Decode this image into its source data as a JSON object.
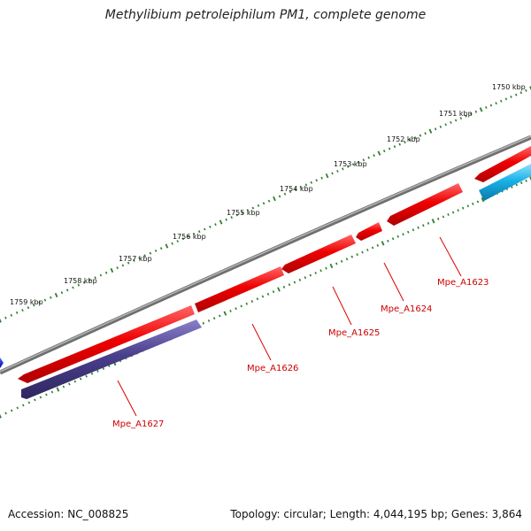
{
  "title": "Methylibium petroleiphilum PM1, complete genome",
  "footer": {
    "accession": "Accession: NC_008825",
    "topology": "Topology: circular; Length: 4,044,195 bp; Genes: 3,864"
  },
  "scale": {
    "unit": "kbp",
    "ticks": [
      "1750 kbp",
      "1751 kbp",
      "1752 kbp",
      "1753 kbp",
      "1754 kbp",
      "1755 kbp",
      "1756 kbp",
      "1757 kbp",
      "1758 kbp",
      "1759 kbp"
    ]
  },
  "genes": [
    {
      "label": "Mpe_A1623",
      "strand": "forward",
      "color": "#ee0000"
    },
    {
      "label": "Mpe_A1624",
      "strand": "forward",
      "color": "#ee0000"
    },
    {
      "label": "Mpe_A1625",
      "strand": "forward",
      "color": "#ee0000"
    },
    {
      "label": "Mpe_A1626",
      "strand": "forward",
      "color": "#ee0000"
    },
    {
      "label": "Mpe_A1627",
      "strand": "reverse",
      "color": "#4a3f8c"
    }
  ],
  "colors": {
    "backbone": "#8a8a8a",
    "tick": "#2e7d2e",
    "forward_gene": "#ee0000",
    "reverse_gene_purple": "#4a3f8c",
    "reverse_gene_cyan": "#1ab2e8",
    "label_line": "#dd0000"
  }
}
